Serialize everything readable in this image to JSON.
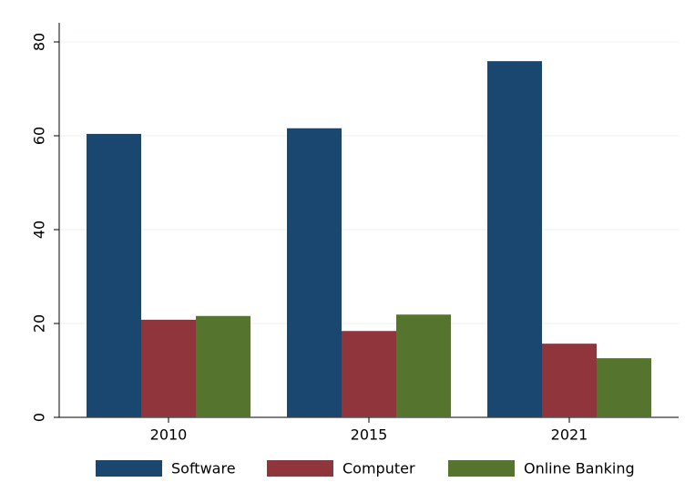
{
  "chart_data": {
    "type": "bar",
    "categories": [
      "2010",
      "2015",
      "2021"
    ],
    "series": [
      {
        "name": "Software",
        "color": "#1a476f",
        "values": [
          60.4,
          61.6,
          75.9
        ]
      },
      {
        "name": "Computer",
        "color": "#90353b",
        "values": [
          20.8,
          18.4,
          15.7
        ]
      },
      {
        "name": "Online Banking",
        "color": "#55752f",
        "values": [
          21.6,
          21.9,
          12.6
        ]
      }
    ],
    "ylim": [
      0,
      80
    ],
    "yticks": [
      0,
      20,
      40,
      60,
      80
    ],
    "grid": true,
    "legend": "bottom"
  }
}
